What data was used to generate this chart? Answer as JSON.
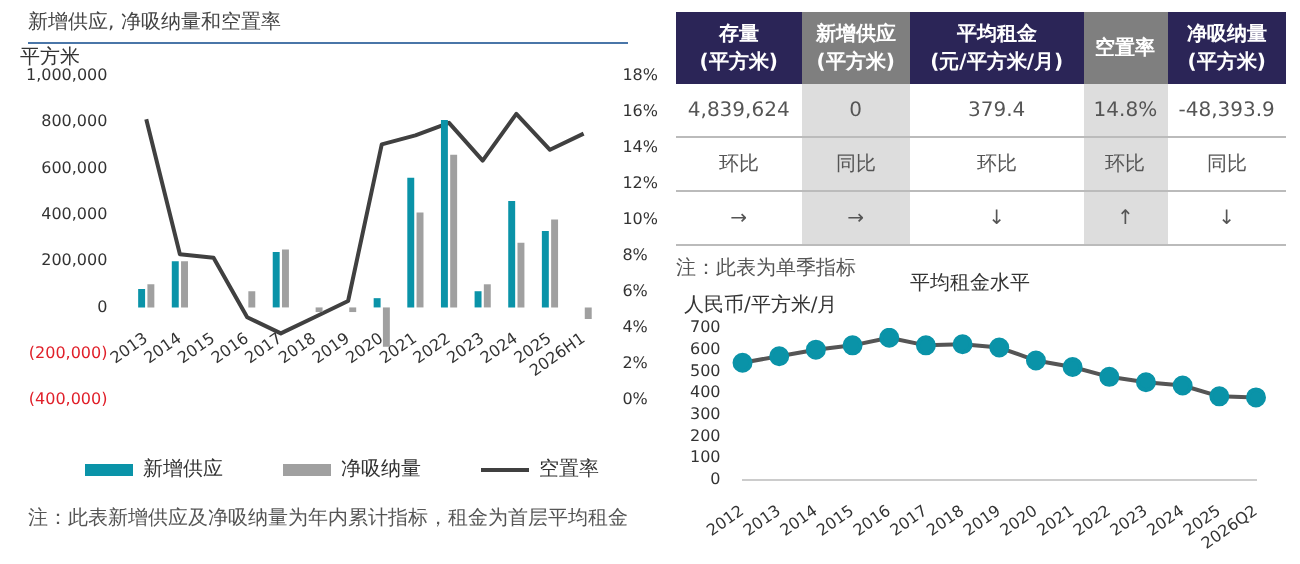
{
  "chart_data": [
    {
      "type": "bar",
      "title": "新增供应, 净吸纳量和空置率",
      "ylabel": "平方米",
      "categories": [
        "2013",
        "2014",
        "2015",
        "2016",
        "2017",
        "2018",
        "2019",
        "2020",
        "2021",
        "2022",
        "2023",
        "2024",
        "2025",
        "2026H1"
      ],
      "series": [
        {
          "name": "新增供应",
          "color": "#0a93a8",
          "values": [
            80000,
            200000,
            0,
            0,
            240000,
            0,
            0,
            40000,
            560000,
            810000,
            70000,
            460000,
            330000,
            0
          ]
        },
        {
          "name": "净吸纳量",
          "color": "#a0a0a0",
          "values": [
            100000,
            200000,
            0,
            70000,
            250000,
            -20000,
            -20000,
            -170000,
            410000,
            660000,
            100000,
            280000,
            380000,
            -50000
          ]
        },
        {
          "name": "空置率",
          "type": "line",
          "axis": "y2",
          "color": "#404040",
          "values": [
            15.6,
            8.1,
            7.9,
            4.6,
            3.7,
            4.6,
            5.5,
            14.2,
            14.7,
            15.4,
            13.3,
            15.9,
            13.9,
            14.8
          ]
        }
      ],
      "ylim": [
        -400000,
        1000000
      ],
      "yticks": [
        {
          "value": -400000,
          "label": "(400,000)"
        },
        {
          "value": -200000,
          "label": "(200,000)"
        },
        0,
        {
          "value": 200000,
          "label": "200,000"
        },
        {
          "value": 400000,
          "label": "400,000"
        },
        {
          "value": 600000,
          "label": "600,000"
        },
        {
          "value": 800000,
          "label": "800,000"
        },
        {
          "value": 1000000,
          "label": "1,000,000"
        }
      ],
      "y2lim": [
        0,
        18
      ],
      "y2ticks": [
        {
          "value": 0,
          "label": "0%"
        },
        {
          "value": 2,
          "label": "2%"
        },
        {
          "value": 4,
          "label": "4%"
        },
        {
          "value": 6,
          "label": "6%"
        },
        {
          "value": 8,
          "label": "8%"
        },
        {
          "value": 10,
          "label": "10%"
        },
        {
          "value": 12,
          "label": "12%"
        },
        {
          "value": 14,
          "label": "14%"
        },
        {
          "value": 16,
          "label": "16%"
        },
        {
          "value": 18,
          "label": "18%"
        }
      ],
      "legend": "bottom",
      "marker": "none",
      "annotations": [
        "注：此表新增供应及净吸纳量为年内累计指标，租金为首层平均租金"
      ]
    },
    {
      "type": "other",
      "categories": [
        "存量\n(平方米)",
        "新增供应\n(平方米)",
        "平均租金\n(元/平方米/月)",
        "空置率",
        "净吸纳量\n(平方米)"
      ],
      "cell_labels": [
        [
          "4,839,624",
          "0",
          "379.4",
          "14.8%",
          "-48,393.9"
        ],
        [
          "环比",
          "同比",
          "环比",
          "环比",
          "同比"
        ],
        [
          "→",
          "→",
          "↓",
          "↑",
          "↓"
        ]
      ],
      "annotations": [
        "注：此表为单季指标"
      ]
    },
    {
      "type": "line",
      "title": "平均租金水平",
      "ylabel": "人民币/平方米/月",
      "categories": [
        "2012",
        "2013",
        "2014",
        "2015",
        "2016",
        "2017",
        "2018",
        "2019",
        "2020",
        "2021",
        "2022",
        "2023",
        "2024",
        "2025",
        "2026Q2"
      ],
      "series": [
        {
          "color": "#0a93a8",
          "values": [
            540,
            570,
            600,
            620,
            655,
            620,
            625,
            610,
            550,
            520,
            475,
            450,
            435,
            385,
            380
          ]
        }
      ],
      "ylim": [
        0,
        700
      ],
      "yticks": [
        0,
        100,
        200,
        300,
        400,
        500,
        600,
        700
      ],
      "marker": "circle",
      "line_style": "solid"
    }
  ]
}
